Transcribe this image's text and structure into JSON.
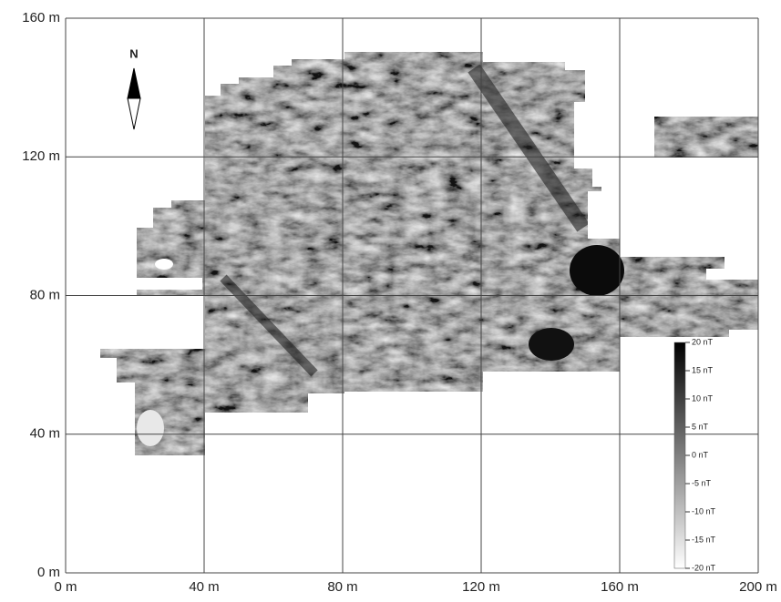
{
  "map": {
    "xlim": [
      0,
      200
    ],
    "ylim": [
      0,
      160
    ],
    "xticks": [
      {
        "value": 0,
        "label": "0 m"
      },
      {
        "value": 40,
        "label": "40 m"
      },
      {
        "value": 80,
        "label": "80 m"
      },
      {
        "value": 120,
        "label": "120 m"
      },
      {
        "value": 160,
        "label": "160 m"
      },
      {
        "value": 200,
        "label": "200 m"
      }
    ],
    "yticks": [
      {
        "value": 0,
        "label": "0 m"
      },
      {
        "value": 40,
        "label": "40 m"
      },
      {
        "value": 80,
        "label": "80 m"
      },
      {
        "value": 120,
        "label": "120 m"
      },
      {
        "value": 160,
        "label": "160 m"
      }
    ],
    "north_label": "N",
    "colorbar": {
      "lim": [
        -20,
        20
      ],
      "ticks": [
        {
          "value": 20,
          "label": "20 nT"
        },
        {
          "value": 15,
          "label": "15 nT"
        },
        {
          "value": 10,
          "label": "10 nT"
        },
        {
          "value": 5,
          "label": "5 nT"
        },
        {
          "value": 0,
          "label": "0 nT"
        },
        {
          "value": -5,
          "label": "-5 nT"
        },
        {
          "value": -10,
          "label": "-10 nT"
        },
        {
          "value": -15,
          "label": "-15 nT"
        },
        {
          "value": -20,
          "label": "-20 nT"
        }
      ]
    }
  }
}
